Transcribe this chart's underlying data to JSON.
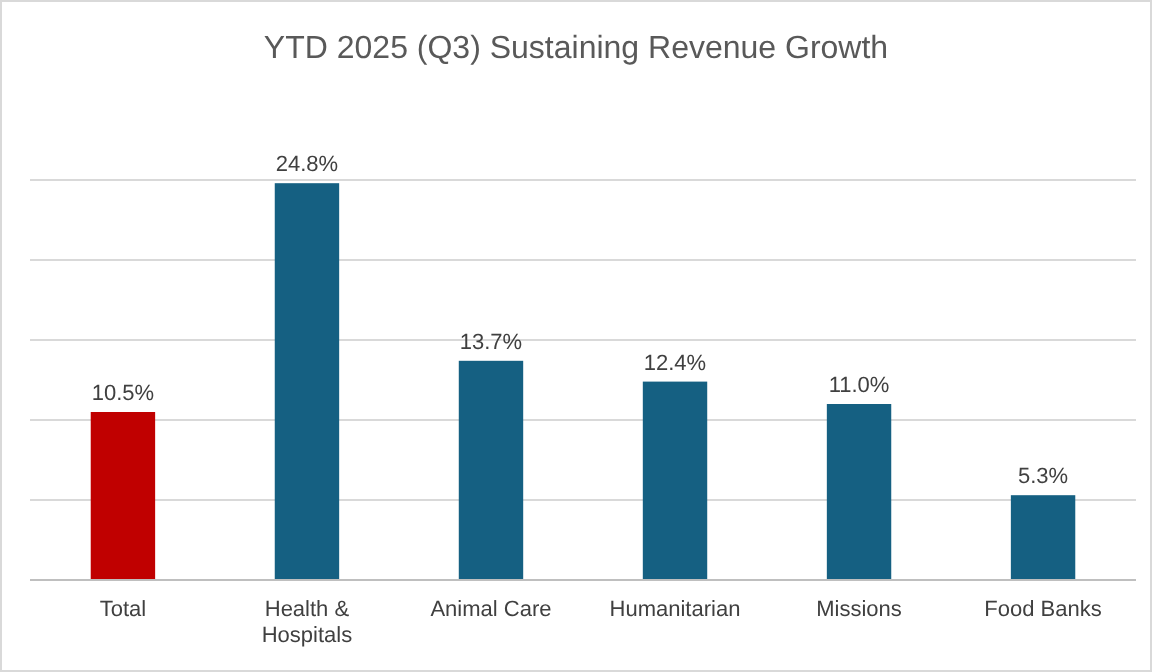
{
  "chart_data": {
    "type": "bar",
    "title": "YTD 2025 (Q3) Sustaining Revenue Growth",
    "categories": [
      "Total",
      "Health & Hospitals",
      "Animal Care",
      "Humanitarian",
      "Missions",
      "Food Banks"
    ],
    "values": [
      10.5,
      24.8,
      13.7,
      12.4,
      11.0,
      5.3
    ],
    "colors": [
      "#c00000",
      "#156082",
      "#156082",
      "#156082",
      "#156082",
      "#156082"
    ],
    "value_labels": [
      "10.5%",
      "24.8%",
      "13.7%",
      "12.4%",
      "11.0%",
      "5.3%"
    ],
    "ylim": [
      0,
      25
    ],
    "yticks": [
      {
        "value": 0,
        "label": null
      },
      {
        "value": 5,
        "label": null
      },
      {
        "value": 10,
        "label": null
      },
      {
        "value": 15,
        "label": null
      },
      {
        "value": 20,
        "label": null
      },
      {
        "value": 25,
        "label": null
      }
    ],
    "tick_labels": "x",
    "grid": "y"
  }
}
